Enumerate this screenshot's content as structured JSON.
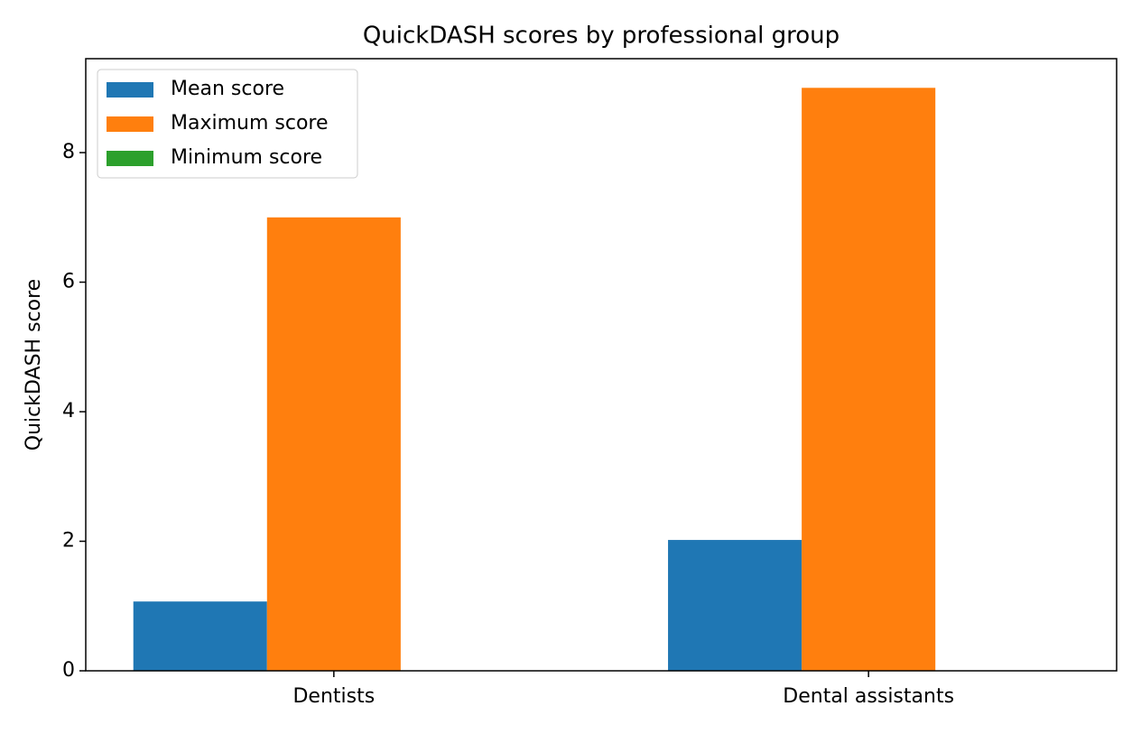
{
  "chart_data": {
    "type": "bar",
    "title": "QuickDASH scores by professional group",
    "y_label": "QuickDASH score",
    "categories": [
      "Dentists",
      "Dental assistants"
    ],
    "series": [
      {
        "name": "Mean score",
        "color": "#1f77b4",
        "values": [
          1.07,
          2.02
        ]
      },
      {
        "name": "Maximum score",
        "color": "#ff7f0e",
        "values": [
          7,
          9
        ]
      },
      {
        "name": "Minimum score",
        "color": "#2ca02c",
        "values": [
          0,
          0
        ]
      }
    ],
    "ylim": [
      0,
      9.45
    ],
    "yticks": [
      0,
      2,
      4,
      6,
      8
    ],
    "grid": false,
    "legend": "upper-left"
  }
}
